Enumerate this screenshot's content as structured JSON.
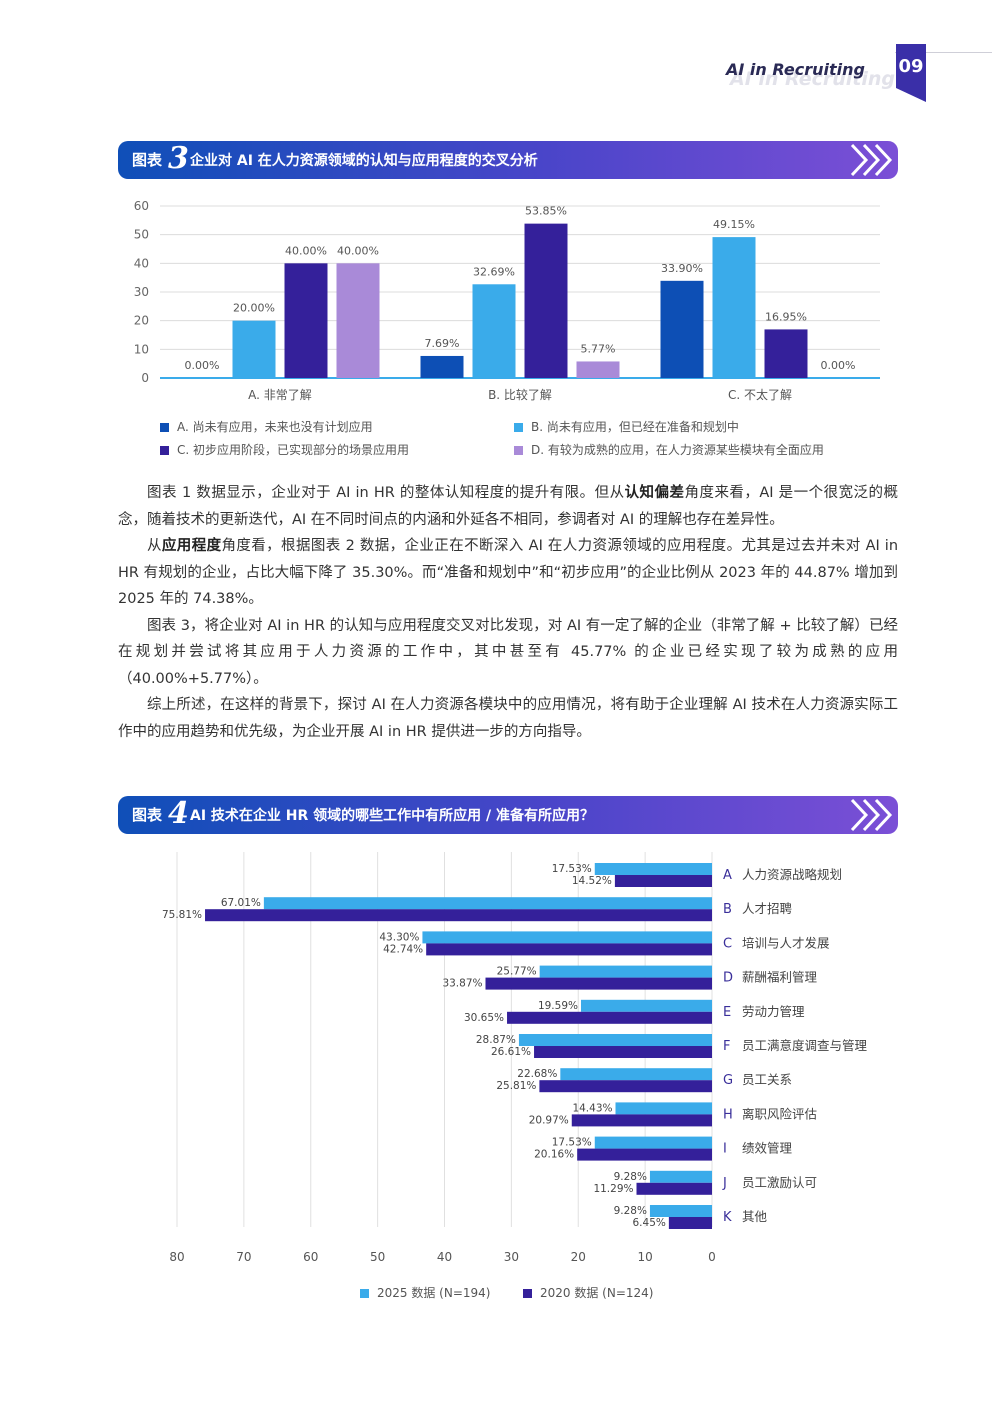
{
  "header": {
    "title": "AI in Recruiting",
    "shadow": "AI in Recruiting",
    "page_number": "09"
  },
  "figure3": {
    "label": "图表",
    "number": "3",
    "title": "企业对 AI 在人力资源领域的认知与应用程度的交叉分析"
  },
  "figure4": {
    "label": "图表",
    "number": "4",
    "title": "AI 技术在企业 HR 领域的哪些工作中有所应用 / 准备有所应用？"
  },
  "chart_data": [
    {
      "type": "bar",
      "categories": [
        "A. 非常了解",
        "B. 比较了解",
        "C. 不太了解"
      ],
      "series": [
        {
          "name": "A. 尚未有应用，未来也没有计划应用",
          "values": [
            0.0,
            7.69,
            33.9
          ],
          "labels": [
            "0.00%",
            "7.69%",
            "33.90%"
          ],
          "color": "#0d4fb5"
        },
        {
          "name": "B. 尚未有应用，但已经在准备和规划中",
          "values": [
            20.0,
            32.69,
            49.15
          ],
          "labels": [
            "20.00%",
            "32.69%",
            "49.15%"
          ],
          "color": "#3aabea"
        },
        {
          "name": "C. 初步应用阶段，已实现部分的场景应用用",
          "values": [
            40.0,
            53.85,
            16.95
          ],
          "labels": [
            "40.00%",
            "53.85%",
            "16.95%"
          ],
          "color": "#34209a"
        },
        {
          "name": "D. 有较为成熟的应用，在人力资源某些模块有全面应用",
          "values": [
            40.0,
            5.77,
            0.0
          ],
          "labels": [
            "40.00%",
            "5.77%",
            "0.00%"
          ],
          "color": "#a98ad8"
        }
      ],
      "yticks": [
        "0",
        "10",
        "20",
        "30",
        "40",
        "50",
        "60"
      ],
      "ylim": [
        0,
        60
      ],
      "grid": true,
      "legend": "bottom"
    },
    {
      "type": "bar",
      "orientation": "horizontal",
      "categories": [
        {
          "letter": "A",
          "label": "人力资源战略规划"
        },
        {
          "letter": "B",
          "label": "人才招聘"
        },
        {
          "letter": "C",
          "label": "培训与人才发展"
        },
        {
          "letter": "D",
          "label": "薪酬福利管理"
        },
        {
          "letter": "E",
          "label": "劳动力管理"
        },
        {
          "letter": "F",
          "label": "员工满意度调查与管理"
        },
        {
          "letter": "G",
          "label": "员工关系"
        },
        {
          "letter": "H",
          "label": "离职风险评估"
        },
        {
          "letter": "I",
          "label": "绩效管理"
        },
        {
          "letter": "J",
          "label": "员工激励认可"
        },
        {
          "letter": "K",
          "label": "其他"
        }
      ],
      "series": [
        {
          "name": "2025 数据 (N=194)",
          "color": "#3aabea",
          "values": [
            17.53,
            67.01,
            43.3,
            25.77,
            19.59,
            28.87,
            22.68,
            14.43,
            17.53,
            9.28,
            9.28
          ],
          "labels": [
            "17.53%",
            "67.01%",
            "43.30%",
            "25.77%",
            "19.59%",
            "28.87%",
            "22.68%",
            "14.43%",
            "17.53%",
            "9.28%",
            "9.28%"
          ]
        },
        {
          "name": "2020 数据 (N=124)",
          "color": "#34209a",
          "values": [
            14.52,
            75.81,
            42.74,
            33.87,
            30.65,
            26.61,
            25.81,
            20.97,
            20.16,
            11.29,
            6.45
          ],
          "labels": [
            "14.52%",
            "75.81%",
            "42.74%",
            "33.87%",
            "30.65%",
            "26.61%",
            "25.81%",
            "20.97%",
            "20.16%",
            "11.29%",
            "6.45%"
          ]
        }
      ],
      "xticks": [
        "80",
        "70",
        "60",
        "50",
        "40",
        "30",
        "20",
        "10",
        "0"
      ],
      "xlim": [
        80,
        0
      ],
      "grid": true,
      "legend": "bottom"
    }
  ],
  "paragraphs": [
    {
      "parts": [
        {
          "t": "图表 1 数据显示，企业对于 AI in HR 的整体认知程度的提升有限。但从",
          "b": false
        },
        {
          "t": "认知偏差",
          "b": true
        },
        {
          "t": "角度来看，AI 是一个很宽泛的概念，随着技术的更新迭代，AI 在不同时间点的内涵和外延各不相同，参调者对 AI 的理解也存在差异性。",
          "b": false
        }
      ]
    },
    {
      "parts": [
        {
          "t": "从",
          "b": false
        },
        {
          "t": "应用程度",
          "b": true
        },
        {
          "t": "角度看，根据图表 2 数据，企业正在不断深入 AI 在人力资源领域的应用程度。尤其是过去并未对 AI in HR 有规划的企业，占比大幅下降了 35.30%。而“准备和规划中”和“初步应用”的企业比例从 2023 年的 44.87% 增加到 2025 年的 74.38%。",
          "b": false
        }
      ]
    },
    {
      "parts": [
        {
          "t": "图表 3，将企业对 AI in HR 的认知与应用程度交叉对比发现，对 AI 有一定了解的企业（非常了解 + 比较了解）已经在规划并尝试将其应用于人力资源的工作中，其中甚至有 45.77% 的企业已经实现了较为成熟的应用（40.00%+5.77%）。",
          "b": false
        }
      ]
    },
    {
      "parts": [
        {
          "t": "综上所述，在这样的背景下，探讨 AI 在人力资源各模块中的应用情况，将有助于企业理解 AI 技术在人力资源实际工作中的应用趋势和优先级，为企业开展 AI in HR 提供进一步的方向指导。",
          "b": false
        }
      ]
    }
  ],
  "colors": {
    "accent": "#3a3aa8",
    "banner_start": "#0f4fb8",
    "banner_end": "#7b4fd6"
  }
}
